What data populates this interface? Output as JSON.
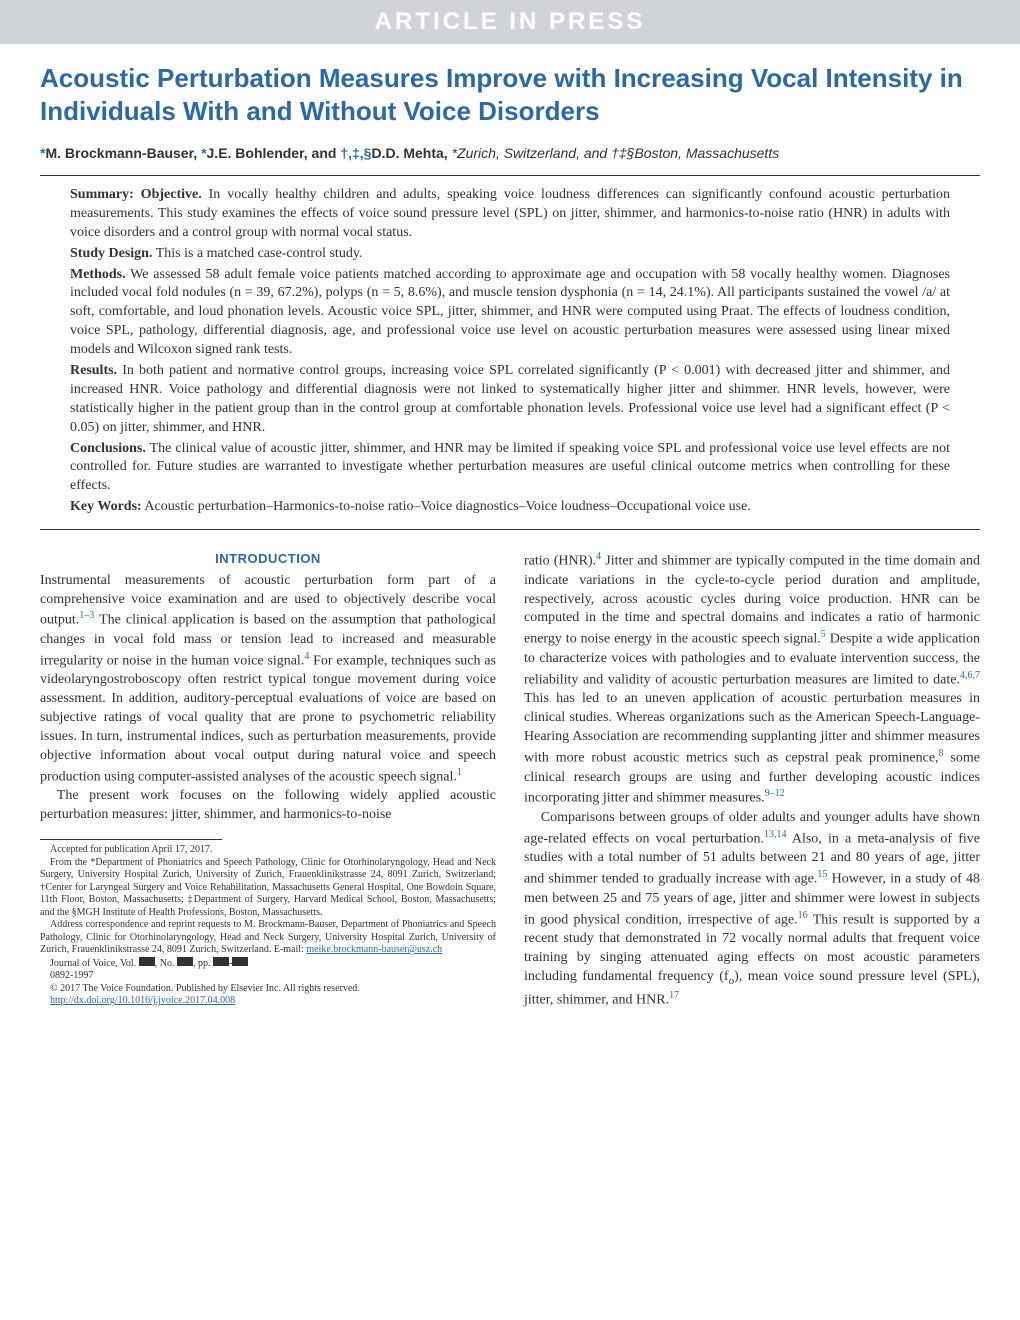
{
  "banner": "ARTICLE IN PRESS",
  "title": "Acoustic Perturbation Measures Improve with Increasing Vocal Intensity in Individuals With and Without Voice Disorders",
  "authors": {
    "line_prefix_a": "*",
    "author1": "M. Brockmann-Bauser, ",
    "line_prefix_b": "*",
    "author2": "J.E. Bohlender, and ",
    "line_prefix_c": "†,‡,§",
    "author3": "D.D. Mehta, ",
    "affil": "*Zurich, Switzerland, and †‡§Boston, Massachusetts"
  },
  "abstract": {
    "summary_label": "Summary: Objective.",
    "summary_text": " In vocally healthy children and adults, speaking voice loudness differences can significantly confound acoustic perturbation measurements. This study examines the effects of voice sound pressure level (SPL) on jitter, shimmer, and harmonics-to-noise ratio (HNR) in adults with voice disorders and a control group with normal vocal status.",
    "design_label": "Study Design.",
    "design_text": " This is a matched case-control study.",
    "methods_label": "Methods.",
    "methods_text": " We assessed 58 adult female voice patients matched according to approximate age and occupation with 58 vocally healthy women. Diagnoses included vocal fold nodules (n = 39, 67.2%), polyps (n = 5, 8.6%), and muscle tension dysphonia (n = 14, 24.1%). All participants sustained the vowel /a/ at soft, comfortable, and loud phonation levels. Acoustic voice SPL, jitter, shimmer, and HNR were computed using Praat. The effects of loudness condition, voice SPL, pathology, differential diagnosis, age, and professional voice use level on acoustic perturbation measures were assessed using linear mixed models and Wilcoxon signed rank tests.",
    "results_label": "Results.",
    "results_text": " In both patient and normative control groups, increasing voice SPL correlated significantly (P < 0.001) with decreased jitter and shimmer, and increased HNR. Voice pathology and differential diagnosis were not linked to systematically higher jitter and shimmer. HNR levels, however, were statistically higher in the patient group than in the control group at comfortable phonation levels. Professional voice use level had a significant effect (P < 0.05) on jitter, shimmer, and HNR.",
    "conclusions_label": "Conclusions.",
    "conclusions_text": " The clinical value of acoustic jitter, shimmer, and HNR may be limited if speaking voice SPL and professional voice use level effects are not controlled for. Future studies are warranted to investigate whether perturbation measures are useful clinical outcome metrics when controlling for these effects.",
    "keywords_label": "Key Words:",
    "keywords_text": " Acoustic perturbation–Harmonics-to-noise ratio–Voice diagnostics–Voice loudness–Occupational voice use."
  },
  "intro_head": "INTRODUCTION",
  "col_left": {
    "p1_a": "Instrumental measurements of acoustic perturbation form part of a comprehensive voice examination and are used to objectively describe vocal output.",
    "p1_sup1": "1–3",
    "p1_b": " The clinical application is based on the assumption that pathological changes in vocal fold mass or tension lead to increased and measurable irregularity or noise in the human voice signal.",
    "p1_sup2": "4",
    "p1_c": " For example, techniques such as videolaryngostroboscopy often restrict typical tongue movement during voice assessment. In addition, auditory-perceptual evaluations of voice are based on subjective ratings of vocal quality that are prone to psychometric reliability issues. In turn, instrumental indices, such as perturbation measurements, provide objective information about vocal output during natural voice and speech production using computer-assisted analyses of the acoustic speech signal.",
    "p1_sup3": "1",
    "p2": "The present work focuses on the following widely applied acoustic perturbation measures: jitter, shimmer, and harmonics-to-noise"
  },
  "col_right": {
    "p1_a": "ratio (HNR).",
    "p1_sup1": "4",
    "p1_b": " Jitter and shimmer are typically computed in the time domain and indicate variations in the cycle-to-cycle period duration and amplitude, respectively, across acoustic cycles during voice production. HNR can be computed in the time and spectral domains and indicates a ratio of harmonic energy to noise energy in the acoustic speech signal.",
    "p1_sup2": "5",
    "p1_c": " Despite a wide application to characterize voices with pathologies and to evaluate intervention success, the reliability and validity of acoustic perturbation measures are limited to date.",
    "p1_sup3": "4,6,7",
    "p1_d": " This has led to an uneven application of acoustic perturbation measures in clinical studies. Whereas organizations such as the American Speech-Language-Hearing Association are recommending supplanting jitter and shimmer measures with more robust acoustic metrics such as cepstral peak prominence,",
    "p1_sup4": "8",
    "p1_e": " some clinical research groups are using and further developing acoustic indices incorporating jitter and shimmer measures.",
    "p1_sup5": "9–12",
    "p2_a": "Comparisons between groups of older adults and younger adults have shown age-related effects on vocal perturbation.",
    "p2_sup1": "13,14",
    "p2_b": " Also, in a meta-analysis of five studies with a total number of 51 adults between 21 and 80 years of age, jitter and shimmer tended to gradually increase with age.",
    "p2_sup2": "15",
    "p2_c": " However, in a study of 48 men between 25 and 75 years of age, jitter and shimmer were lowest in subjects in good physical condition, irrespective of age.",
    "p2_sup3": "16",
    "p2_d": " This result is supported by a recent study that demonstrated in 72 vocally normal adults that frequent voice training by singing attenuated aging effects on most acoustic parameters including fundamental frequency (f",
    "p2_sub": "o",
    "p2_e": "), mean voice sound pressure level (SPL), jitter, shimmer, and HNR.",
    "p2_sup4": "17"
  },
  "footnotes": {
    "accepted": "Accepted for publication April 17, 2017.",
    "from": "From the *Department of Phoniatrics and Speech Pathology, Clinic for Otorhinolaryngology, Head and Neck Surgery, University Hospital Zurich, University of Zurich, Frauenklinikstrasse 24, 8091 Zurich, Switzerland; †Center for Laryngeal Surgery and Voice Rehabilitation, Massachusetts General Hospital, One Bowdoin Square, 11th Floor, Boston, Massachusetts; ‡Department of Surgery, Harvard Medical School, Boston, Massachusetts; and the §MGH Institute of Health Professions, Boston, Massachusetts.",
    "address": "Address correspondence and reprint requests to M. Brockmann-Bauser, Department of Phoniatrics and Speech Pathology, Clinic for Otorhinolaryngology, Head and Neck Surgery, University Hospital Zurich, University of Zurich, Frauenklinikstrasse 24, 8091 Zurich, Switzerland. E-mail: ",
    "email": "meike.brockmann-bauser@usz.ch",
    "journal_a": "Journal of Voice, Vol. ",
    "journal_b": ", No. ",
    "journal_c": ", pp. ",
    "issn": "0892-1997",
    "copyright": "© 2017 The Voice Foundation. Published by Elsevier Inc. All rights reserved.",
    "doi": "http://dx.doi.org/10.1016/j.jvoice.2017.04.008"
  },
  "colors": {
    "banner_bg": "#d0d4d8",
    "banner_text": "#ffffff",
    "title": "#2a6aa8",
    "link": "#2a6aa8",
    "text": "#333333"
  }
}
